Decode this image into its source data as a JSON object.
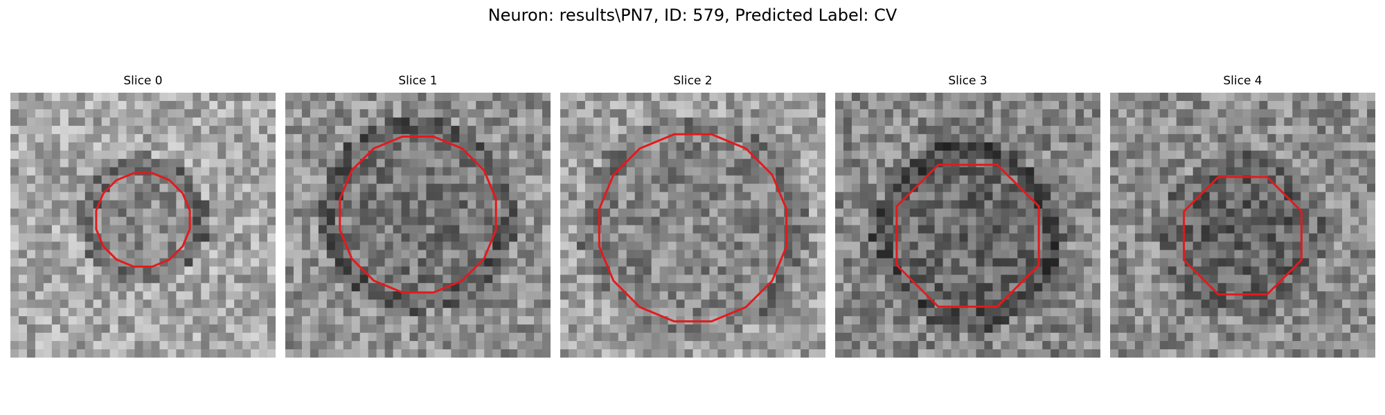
{
  "figure": {
    "title": "Neuron: results\\PN7, ID: 579, Predicted Label: CV"
  },
  "panels": [
    {
      "title": "Slice 0"
    },
    {
      "title": "Slice 1"
    },
    {
      "title": "Slice 2"
    },
    {
      "title": "Slice 3"
    },
    {
      "title": "Slice 4"
    }
  ],
  "colors": {
    "contour": "#e31a1c",
    "background": "#ffffff"
  }
}
